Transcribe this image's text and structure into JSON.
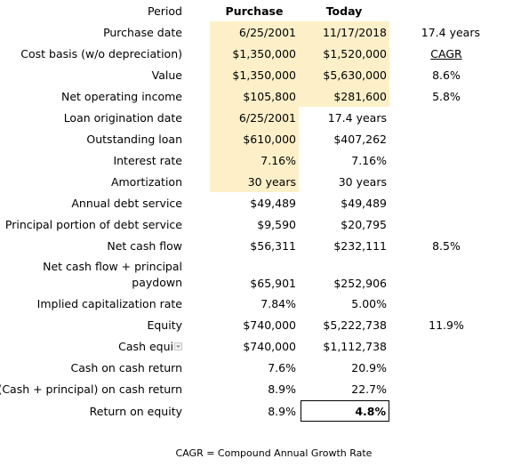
{
  "headers": {
    "label": "Period",
    "purchase": "Purchase",
    "today": "Today"
  },
  "rows": [
    {
      "label": "Purchase date",
      "purchase": "6/25/2001",
      "today": "11/17/2018",
      "note": "17.4 years"
    },
    {
      "label": "Cost basis (w/o depreciation)",
      "purchase": "$1,350,000",
      "today": "$1,520,000",
      "note": "CAGR"
    },
    {
      "label": "Value",
      "purchase": "$1,350,000",
      "today": "$5,630,000",
      "note": "8.6%"
    },
    {
      "label": "Net operating income",
      "purchase": "$105,800",
      "today": "$281,600",
      "note": "5.8%"
    },
    {
      "label": "Loan origination date",
      "purchase": "6/25/2001",
      "today": "17.4 years",
      "note": ""
    },
    {
      "label": "Outstanding loan",
      "purchase": "$610,000",
      "today": "$407,262",
      "note": ""
    },
    {
      "label": "Interest rate",
      "purchase": "7.16%",
      "today": "7.16%",
      "note": ""
    },
    {
      "label": "Amortization",
      "purchase": "30 years",
      "today": "30 years",
      "note": ""
    },
    {
      "label": "Annual debt service",
      "purchase": "$49,489",
      "today": "$49,489",
      "note": ""
    },
    {
      "label": "Principal portion of debt service",
      "purchase": "$9,590",
      "today": "$20,795",
      "note": ""
    },
    {
      "label": "Net cash flow",
      "purchase": "$56,311",
      "today": "$232,111",
      "note": "8.5%"
    },
    {
      "label_line1": "Net cash flow + principal",
      "label_line2": "paydown",
      "purchase": "$65,901",
      "today": "$252,906",
      "note": ""
    },
    {
      "label": "Implied capitalization rate",
      "purchase": "7.84%",
      "today": "5.00%",
      "note": ""
    },
    {
      "label": "Equity",
      "purchase": "$740,000",
      "today": "$5,222,738",
      "note": "11.9%"
    },
    {
      "label": "Cash equi",
      "purchase": "$740,000",
      "today": "$1,112,738",
      "note": ""
    },
    {
      "label": "Cash on cash return",
      "purchase": "7.6%",
      "today": "20.9%",
      "note": ""
    },
    {
      "label": "(Cash + principal) on cash return",
      "purchase": "8.9%",
      "today": "22.7%",
      "note": ""
    },
    {
      "label": "Return on equity",
      "purchase": "8.9%",
      "today": "4.8%",
      "note": ""
    }
  ],
  "footnote": "CAGR = Compound Annual Growth Rate",
  "colors": {
    "input_shade": "#fdf0c8",
    "border": "#000000"
  },
  "icons": {
    "filter": "dropdown-filter-icon"
  }
}
